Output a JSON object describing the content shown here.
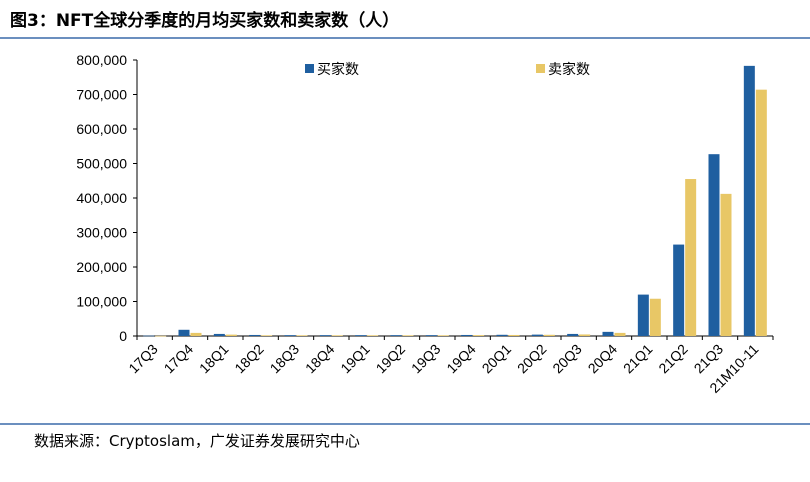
{
  "title": "图3：NFT全球分季度的月均买家数和卖家数（人）",
  "source": "数据来源：Cryptoslam，广发证券发展研究中心",
  "colors": {
    "buyers": "#1f5fa0",
    "sellers": "#e8c766"
  },
  "chart_data": {
    "type": "bar",
    "title": "图3：NFT全球分季度的月均买家数和卖家数（人）",
    "xlabel": "",
    "ylabel": "",
    "categories": [
      "17Q3",
      "17Q4",
      "18Q1",
      "18Q2",
      "18Q3",
      "18Q4",
      "19Q1",
      "19Q2",
      "19Q3",
      "19Q4",
      "20Q1",
      "20Q2",
      "20Q3",
      "20Q4",
      "21Q1",
      "21Q2",
      "21Q3",
      "21M10-11"
    ],
    "series": [
      {
        "name": "买家数",
        "values": [
          1000,
          18000,
          6000,
          3000,
          2500,
          2500,
          2500,
          2500,
          2500,
          3000,
          3500,
          4000,
          6000,
          12000,
          120000,
          265000,
          527000,
          783000
        ]
      },
      {
        "name": "卖家数",
        "values": [
          500,
          9000,
          4000,
          2000,
          2000,
          2000,
          2000,
          2000,
          2000,
          2500,
          3000,
          3500,
          4500,
          9000,
          108000,
          455000,
          412000,
          714000
        ]
      }
    ],
    "ylim": [
      0,
      800000
    ],
    "yticks": [
      "0",
      "100,000",
      "200,000",
      "300,000",
      "400,000",
      "500,000",
      "600,000",
      "700,000",
      "800,000"
    ],
    "grid": false,
    "legend": "top"
  }
}
